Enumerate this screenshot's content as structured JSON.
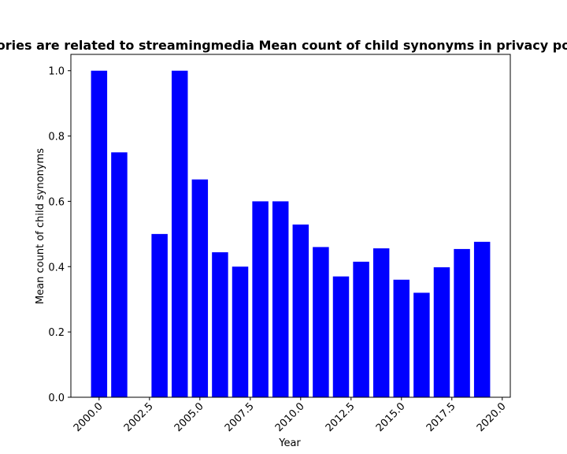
{
  "chart_data": {
    "type": "bar",
    "title": "ories are related to streamingmedia Mean count of child synonyms in privacy po",
    "xlabel": "Year",
    "ylabel": "Mean count of child synonyms",
    "x": [
      2000,
      2001,
      2003,
      2004,
      2005,
      2006,
      2007,
      2008,
      2009,
      2010,
      2011,
      2012,
      2013,
      2014,
      2015,
      2016,
      2017,
      2018,
      2019
    ],
    "values": [
      1.0,
      0.75,
      0.5,
      1.0,
      0.667,
      0.444,
      0.4,
      0.6,
      0.6,
      0.529,
      0.46,
      0.37,
      0.415,
      0.456,
      0.36,
      0.32,
      0.398,
      0.454,
      0.476
    ],
    "xlim": [
      1998.6,
      2020.4
    ],
    "ylim": [
      0,
      1.05
    ],
    "xticks": [
      2000.0,
      2002.5,
      2005.0,
      2007.5,
      2010.0,
      2012.5,
      2015.0,
      2017.5,
      2020.0
    ],
    "xtick_labels": [
      "2000.0",
      "2002.5",
      "2005.0",
      "2007.5",
      "2010.0",
      "2012.5",
      "2015.0",
      "2017.5",
      "2020.0"
    ],
    "yticks": [
      0.0,
      0.2,
      0.4,
      0.6,
      0.8,
      1.0
    ],
    "ytick_labels": [
      "0.0",
      "0.2",
      "0.4",
      "0.6",
      "0.8",
      "1.0"
    ],
    "bar_width": 0.8,
    "bar_color": "#0000ff",
    "grid": false,
    "legend": "none"
  }
}
